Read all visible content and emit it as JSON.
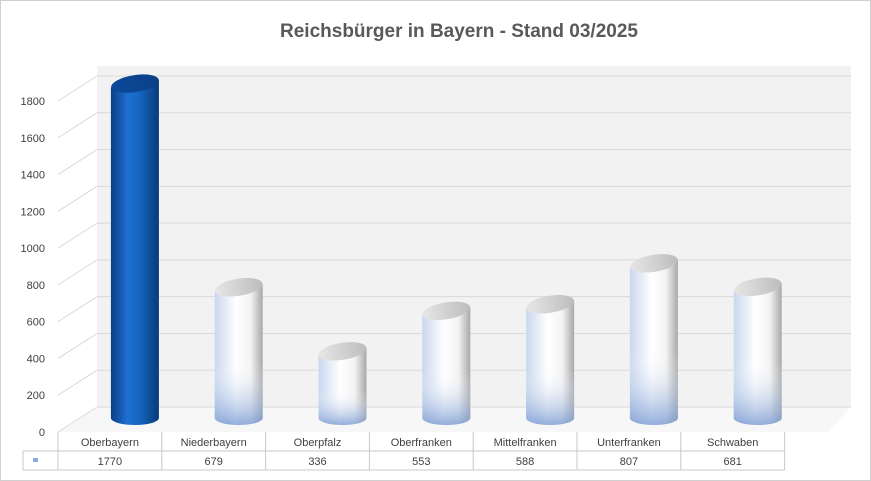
{
  "chart_data": {
    "type": "bar",
    "style": "3d-cylinder",
    "title": "Reichsbürger in Bayern  - Stand 03/2025",
    "categories": [
      "Oberbayern",
      "Niederbayern",
      "Oberpfalz",
      "Oberfranken",
      "Mittelfranken",
      "Unterfranken",
      "Schwaben"
    ],
    "series": [
      {
        "values": [
          1770,
          679,
          336,
          553,
          588,
          807,
          681
        ]
      }
    ],
    "highlight_index": 0,
    "ylim": [
      0,
      1800
    ],
    "y_ticks": [
      0,
      200,
      400,
      600,
      800,
      1000,
      1200,
      1400,
      1600,
      1800
    ],
    "grid": true,
    "legend": "none",
    "data_table": true,
    "colors": {
      "highlight": "#1565c0",
      "bar_light": "#ffffff",
      "bar_shadow": "#a9bfe0",
      "gridline": "#d9d9d9",
      "wall": "#f2f2f2"
    }
  }
}
